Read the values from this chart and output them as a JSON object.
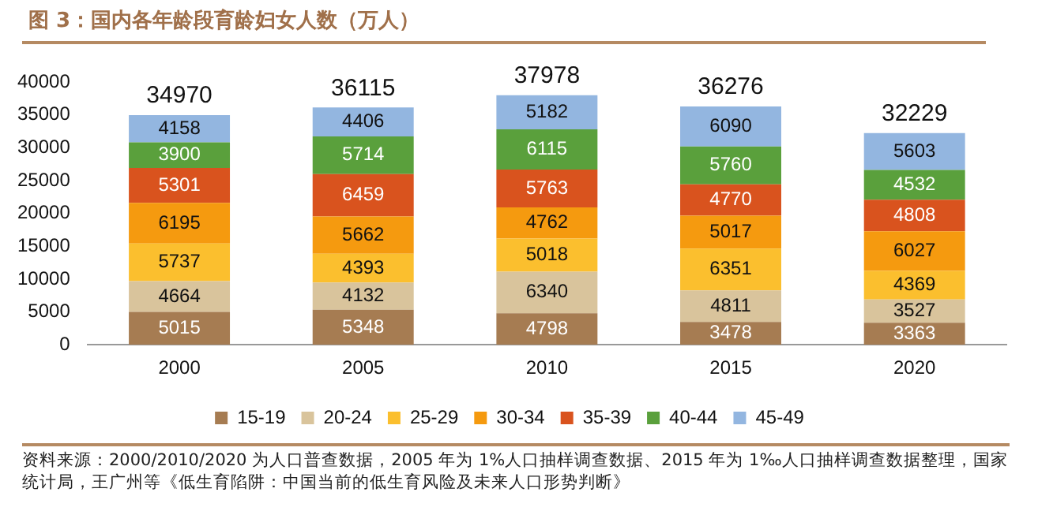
{
  "chart_data": {
    "type": "bar",
    "title": "图 3：国内各年龄段育龄妇女人数（万人）",
    "categories": [
      "2000",
      "2005",
      "2010",
      "2015",
      "2020"
    ],
    "stacked": true,
    "ylim": [
      0,
      40000
    ],
    "yticks": [
      0,
      5000,
      10000,
      15000,
      20000,
      25000,
      30000,
      35000,
      40000
    ],
    "grid": false,
    "legend": "bottom",
    "data_labels": true,
    "series": [
      {
        "name": "15-19",
        "color": "#a67c52",
        "values": [
          5015,
          5348,
          4798,
          3478,
          3363
        ]
      },
      {
        "name": "20-24",
        "color": "#d9c49c",
        "values": [
          4664,
          4132,
          6340,
          4811,
          3527
        ]
      },
      {
        "name": "25-29",
        "color": "#fbbf2e",
        "values": [
          5737,
          4393,
          5018,
          6351,
          4369
        ]
      },
      {
        "name": "30-34",
        "color": "#f59a0f",
        "values": [
          6195,
          5662,
          4762,
          5017,
          6027
        ]
      },
      {
        "name": "35-39",
        "color": "#d9531e",
        "values": [
          5301,
          6459,
          5763,
          4770,
          4808
        ]
      },
      {
        "name": "40-44",
        "color": "#5aa03c",
        "values": [
          3900,
          5714,
          6115,
          5760,
          4532
        ]
      },
      {
        "name": "45-49",
        "color": "#93b6e0",
        "values": [
          4158,
          4406,
          5182,
          6090,
          5603
        ]
      }
    ],
    "totals": [
      "34970",
      "36115",
      "37978",
      "36276",
      "32229"
    ],
    "annotations": [
      "资料来源：2000/2010/2020 为人口普查数据，2005 年为 1%人口抽样调查数据、2015 年为 1‰人口抽样调查数据整理，国家统计局，王广州等《低生育陷阱：中国当前的低生育风险及未来人口形势判断》"
    ]
  }
}
